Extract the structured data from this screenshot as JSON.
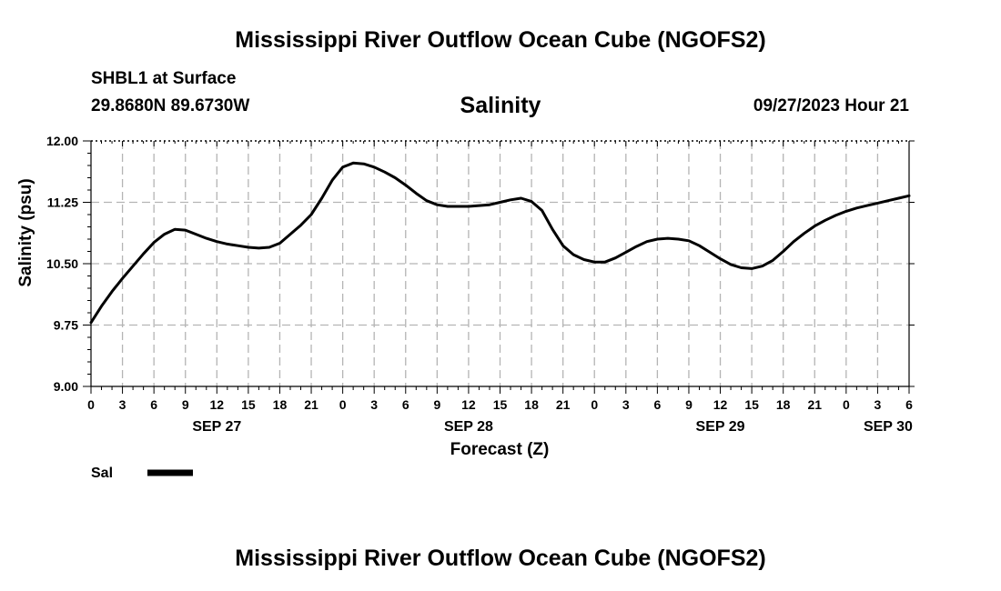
{
  "header": {
    "title": "Mississippi River Outflow Ocean Cube (NGOFS2)",
    "station": "SHBL1 at Surface",
    "coords": "29.8680N  89.6730W",
    "variable": "Salinity",
    "datetime": "09/27/2023 Hour 21"
  },
  "footer": {
    "title": "Mississippi River Outflow Ocean Cube (NGOFS2)"
  },
  "chart_data": {
    "type": "line",
    "title": "Salinity",
    "xlabel": "Forecast (Z)",
    "ylabel": "Salinity (psu)",
    "ylim": [
      9.0,
      12.0
    ],
    "yticks": [
      "9.00",
      "9.75",
      "10.50",
      "11.25",
      "12.00"
    ],
    "xlim_hours": [
      0,
      78
    ],
    "xtick_labels": [
      "0",
      "3",
      "6",
      "9",
      "12",
      "15",
      "18",
      "21",
      "0",
      "3",
      "6",
      "9",
      "12",
      "15",
      "18",
      "21",
      "0",
      "3",
      "6",
      "9",
      "12",
      "15",
      "18",
      "21",
      "0",
      "3",
      "6"
    ],
    "date_labels": [
      {
        "label": "SEP 27",
        "hour": 12
      },
      {
        "label": "SEP 28",
        "hour": 36
      },
      {
        "label": "SEP 29",
        "hour": 60
      },
      {
        "label": "SEP 30",
        "hour": 76
      }
    ],
    "grid": true,
    "legend": {
      "label": "Sal",
      "placement": "bottom-left"
    },
    "series": [
      {
        "name": "Sal",
        "color": "#000000",
        "x": [
          0,
          1,
          2,
          3,
          4,
          5,
          6,
          7,
          8,
          9,
          10,
          11,
          12,
          13,
          14,
          15,
          16,
          17,
          18,
          19,
          20,
          21,
          22,
          23,
          24,
          25,
          26,
          27,
          28,
          29,
          30,
          31,
          32,
          33,
          34,
          35,
          36,
          37,
          38,
          39,
          40,
          41,
          42,
          43,
          44,
          45,
          46,
          47,
          48,
          49,
          50,
          51,
          52,
          53,
          54,
          55,
          56,
          57,
          58,
          59,
          60,
          61,
          62,
          63,
          64,
          65,
          66,
          67,
          68,
          69,
          70,
          71,
          72,
          73,
          74,
          75,
          76,
          77,
          78
        ],
        "values": [
          9.78,
          9.98,
          10.16,
          10.32,
          10.47,
          10.62,
          10.76,
          10.86,
          10.92,
          10.91,
          10.86,
          10.81,
          10.77,
          10.74,
          10.72,
          10.7,
          10.69,
          10.7,
          10.75,
          10.86,
          10.97,
          11.1,
          11.3,
          11.52,
          11.68,
          11.73,
          11.72,
          11.68,
          11.62,
          11.55,
          11.46,
          11.36,
          11.27,
          11.22,
          11.2,
          11.2,
          11.2,
          11.21,
          11.22,
          11.25,
          11.28,
          11.3,
          11.26,
          11.15,
          10.92,
          10.72,
          10.61,
          10.55,
          10.52,
          10.52,
          10.57,
          10.64,
          10.71,
          10.77,
          10.8,
          10.81,
          10.8,
          10.78,
          10.72,
          10.64,
          10.56,
          10.49,
          10.45,
          10.44,
          10.47,
          10.54,
          10.65,
          10.77,
          10.87,
          10.96,
          11.03,
          11.09,
          11.14,
          11.18,
          11.21,
          11.24,
          11.27,
          11.3,
          11.33
        ]
      }
    ]
  }
}
